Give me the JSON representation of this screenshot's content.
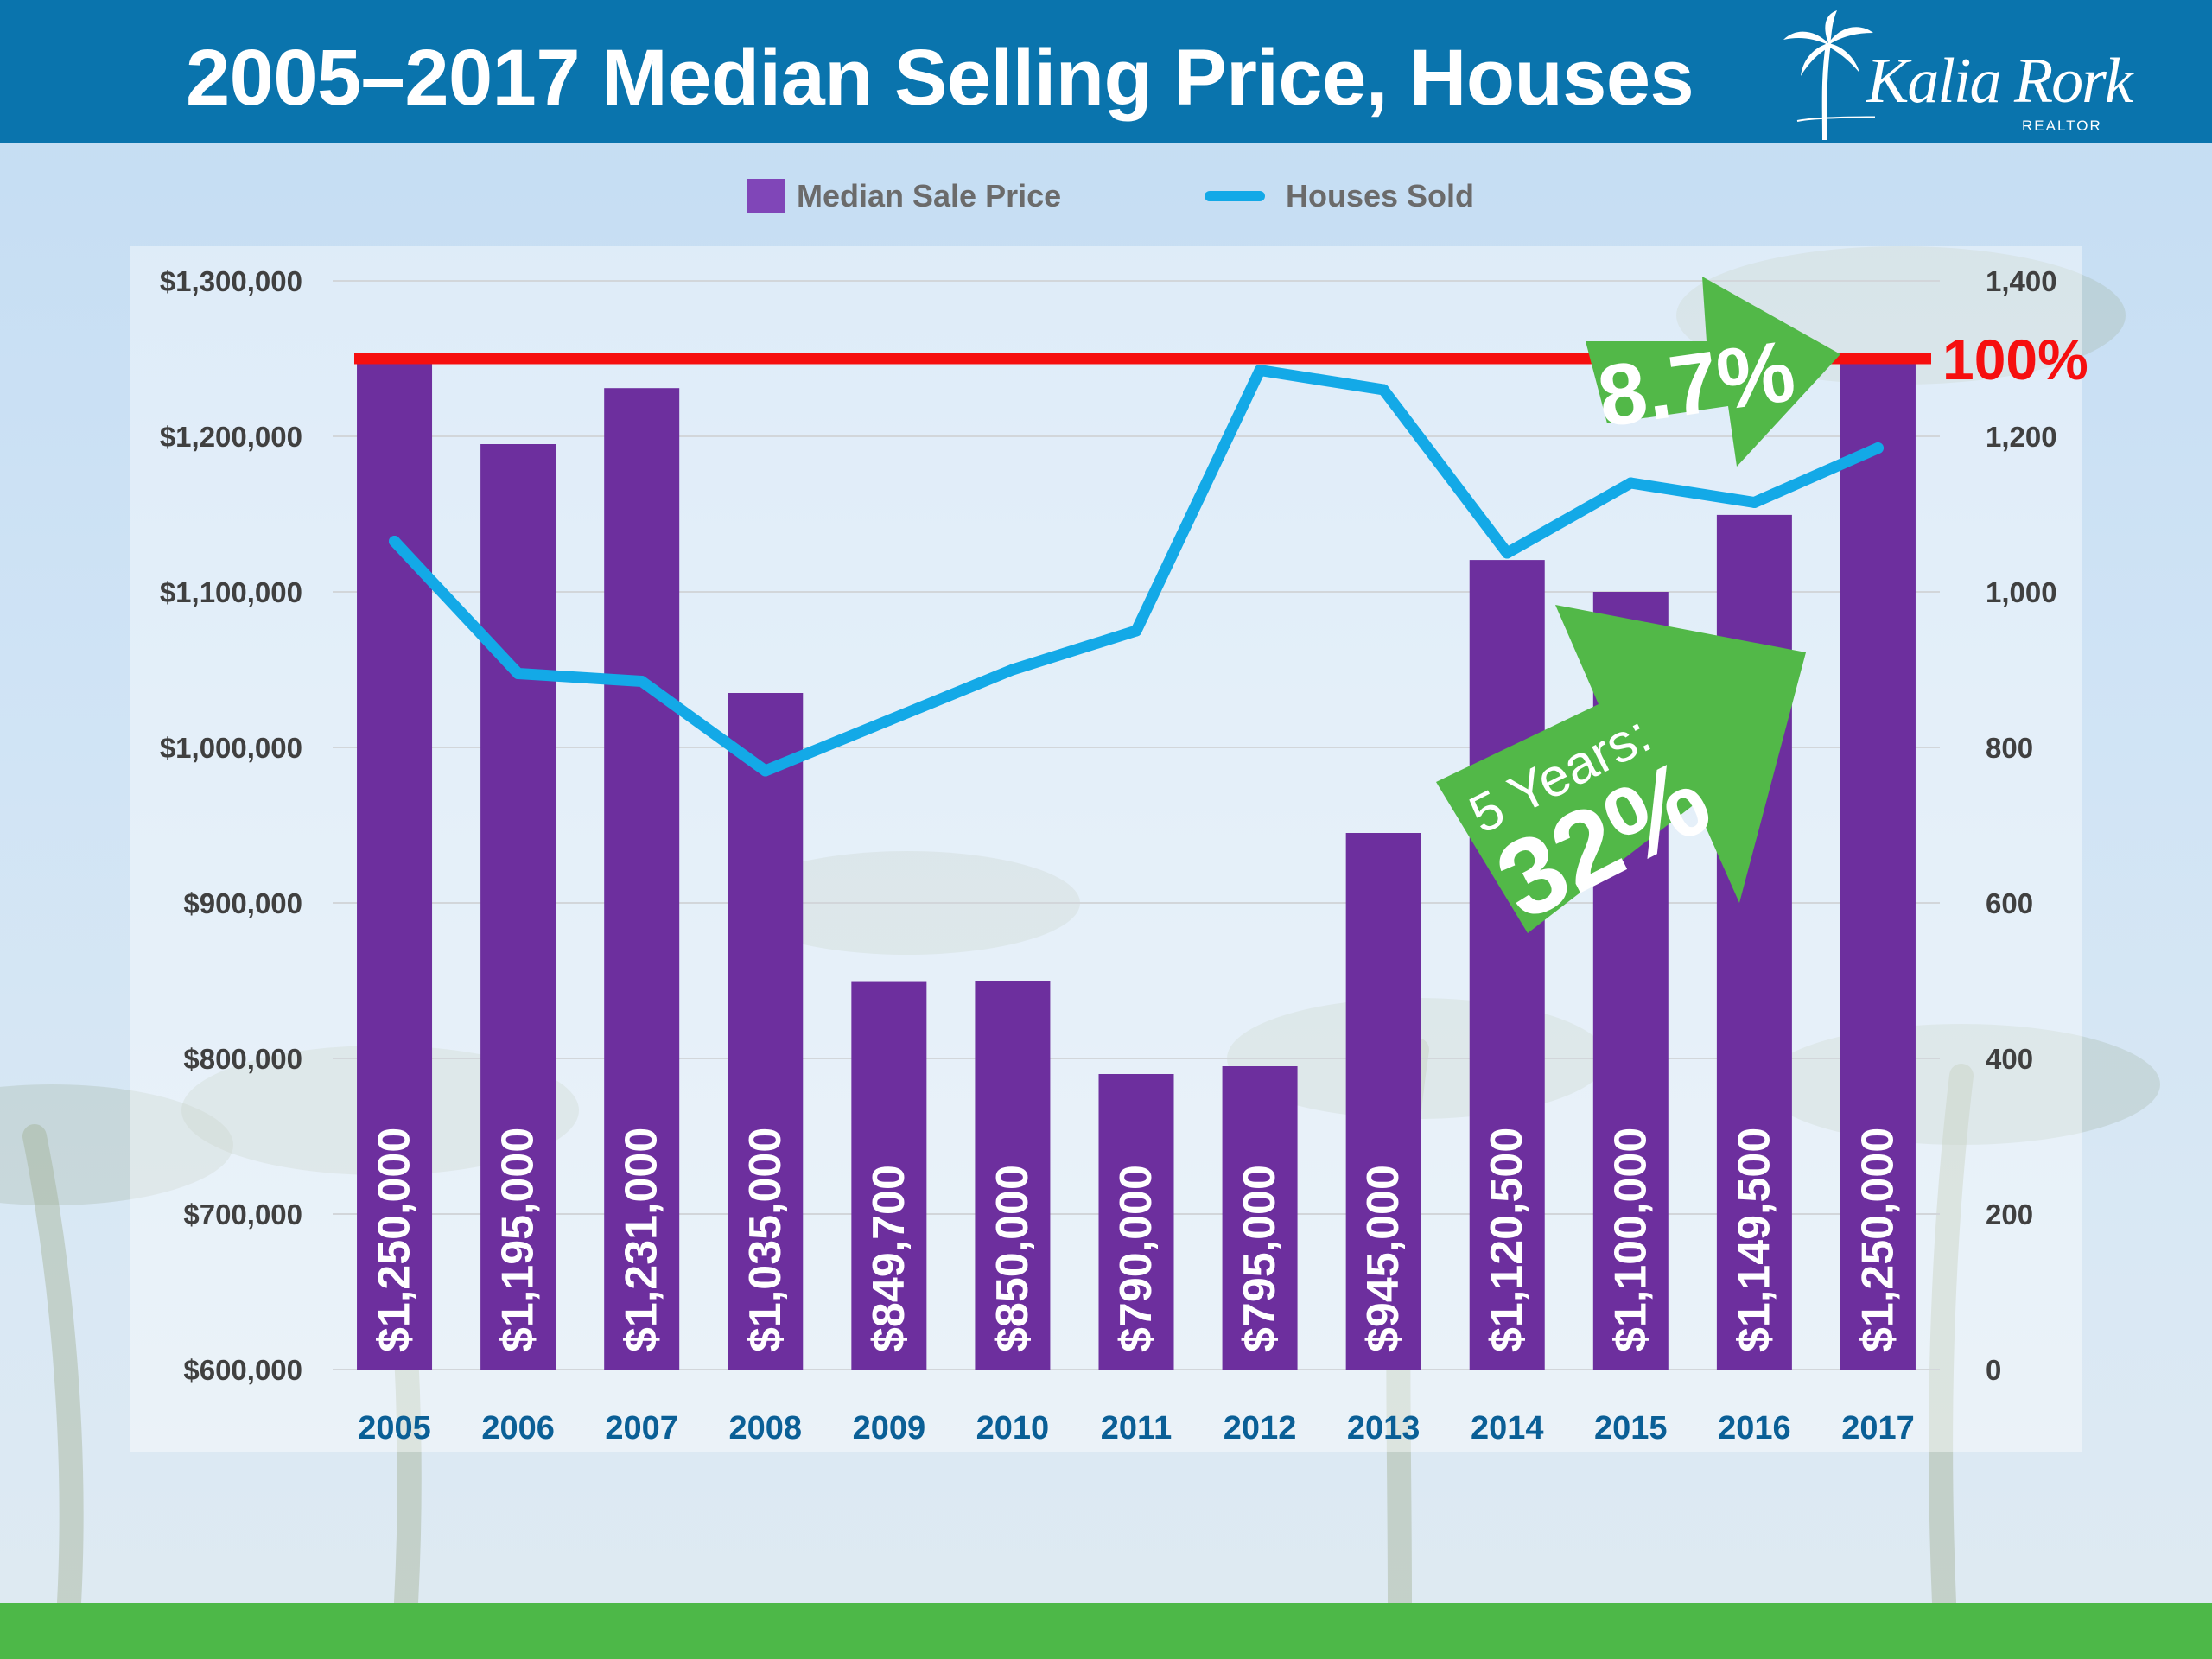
{
  "header": {
    "title": "2005–2017 Median Selling Price, Houses",
    "logo_name": "Kalia Rork",
    "logo_sub": "REALTOR"
  },
  "colors": {
    "header_bg": "#0a74ad",
    "bar": "#6d2f9e",
    "line": "#13a9e7",
    "reference_line": "#f60f0f",
    "arrow": "#52b848",
    "year_label": "#0a5f96",
    "axis_text": "#404040",
    "footer": "#4db848"
  },
  "chart_data": {
    "type": "bar",
    "title": "2005–2017 Median Selling Price, Houses",
    "categories": [
      "2005",
      "2006",
      "2007",
      "2008",
      "2009",
      "2010",
      "2011",
      "2012",
      "2013",
      "2014",
      "2015",
      "2016",
      "2017"
    ],
    "series": [
      {
        "name": "Median Sale Price",
        "type": "bar",
        "axis": "left",
        "values": [
          1250000,
          1195000,
          1231000,
          1035000,
          849700,
          850000,
          790000,
          795000,
          945000,
          1120500,
          1100000,
          1149500,
          1250000
        ],
        "labels": [
          "$1,250,000",
          "$1,195,000",
          "$1,231,000",
          "$1,035,000",
          "$849,700",
          "$850,000",
          "$790,000",
          "$795,000",
          "$945,000",
          "$1,120,500",
          "$1,100,000",
          "$1,149,500",
          "$1,250,000"
        ]
      },
      {
        "name": "Houses Sold",
        "type": "line",
        "axis": "right",
        "values": [
          1065,
          895,
          885,
          770,
          835,
          900,
          950,
          1285,
          1260,
          1050,
          1140,
          1115,
          1185
        ]
      }
    ],
    "y_left": {
      "ylim": [
        600000,
        1300000
      ],
      "ticks": [
        600000,
        700000,
        800000,
        900000,
        1000000,
        1100000,
        1200000,
        1300000
      ],
      "tick_labels": [
        "$600,000",
        "$700,000",
        "$800,000",
        "$900,000",
        "$1,000,000",
        "$1,100,000",
        "$1,200,000",
        "$1,300,000"
      ]
    },
    "y_right": {
      "ylim": [
        0,
        1400
      ],
      "ticks": [
        0,
        200,
        400,
        600,
        800,
        1000,
        1200,
        1400
      ],
      "tick_labels": [
        "0",
        "200",
        "400",
        "600",
        "800",
        "1,000",
        "1,200",
        "1,400"
      ]
    },
    "grid": true,
    "legend": "top-center",
    "reference_line": {
      "value": 1250000,
      "axis": "left",
      "label": "100%"
    },
    "annotations": [
      {
        "text": "8.7%",
        "style": "arrow",
        "near": "2015-2016, top"
      },
      {
        "line1": "5 Years:",
        "line2": "32%",
        "style": "arrow",
        "near": "2013-2016"
      }
    ]
  }
}
